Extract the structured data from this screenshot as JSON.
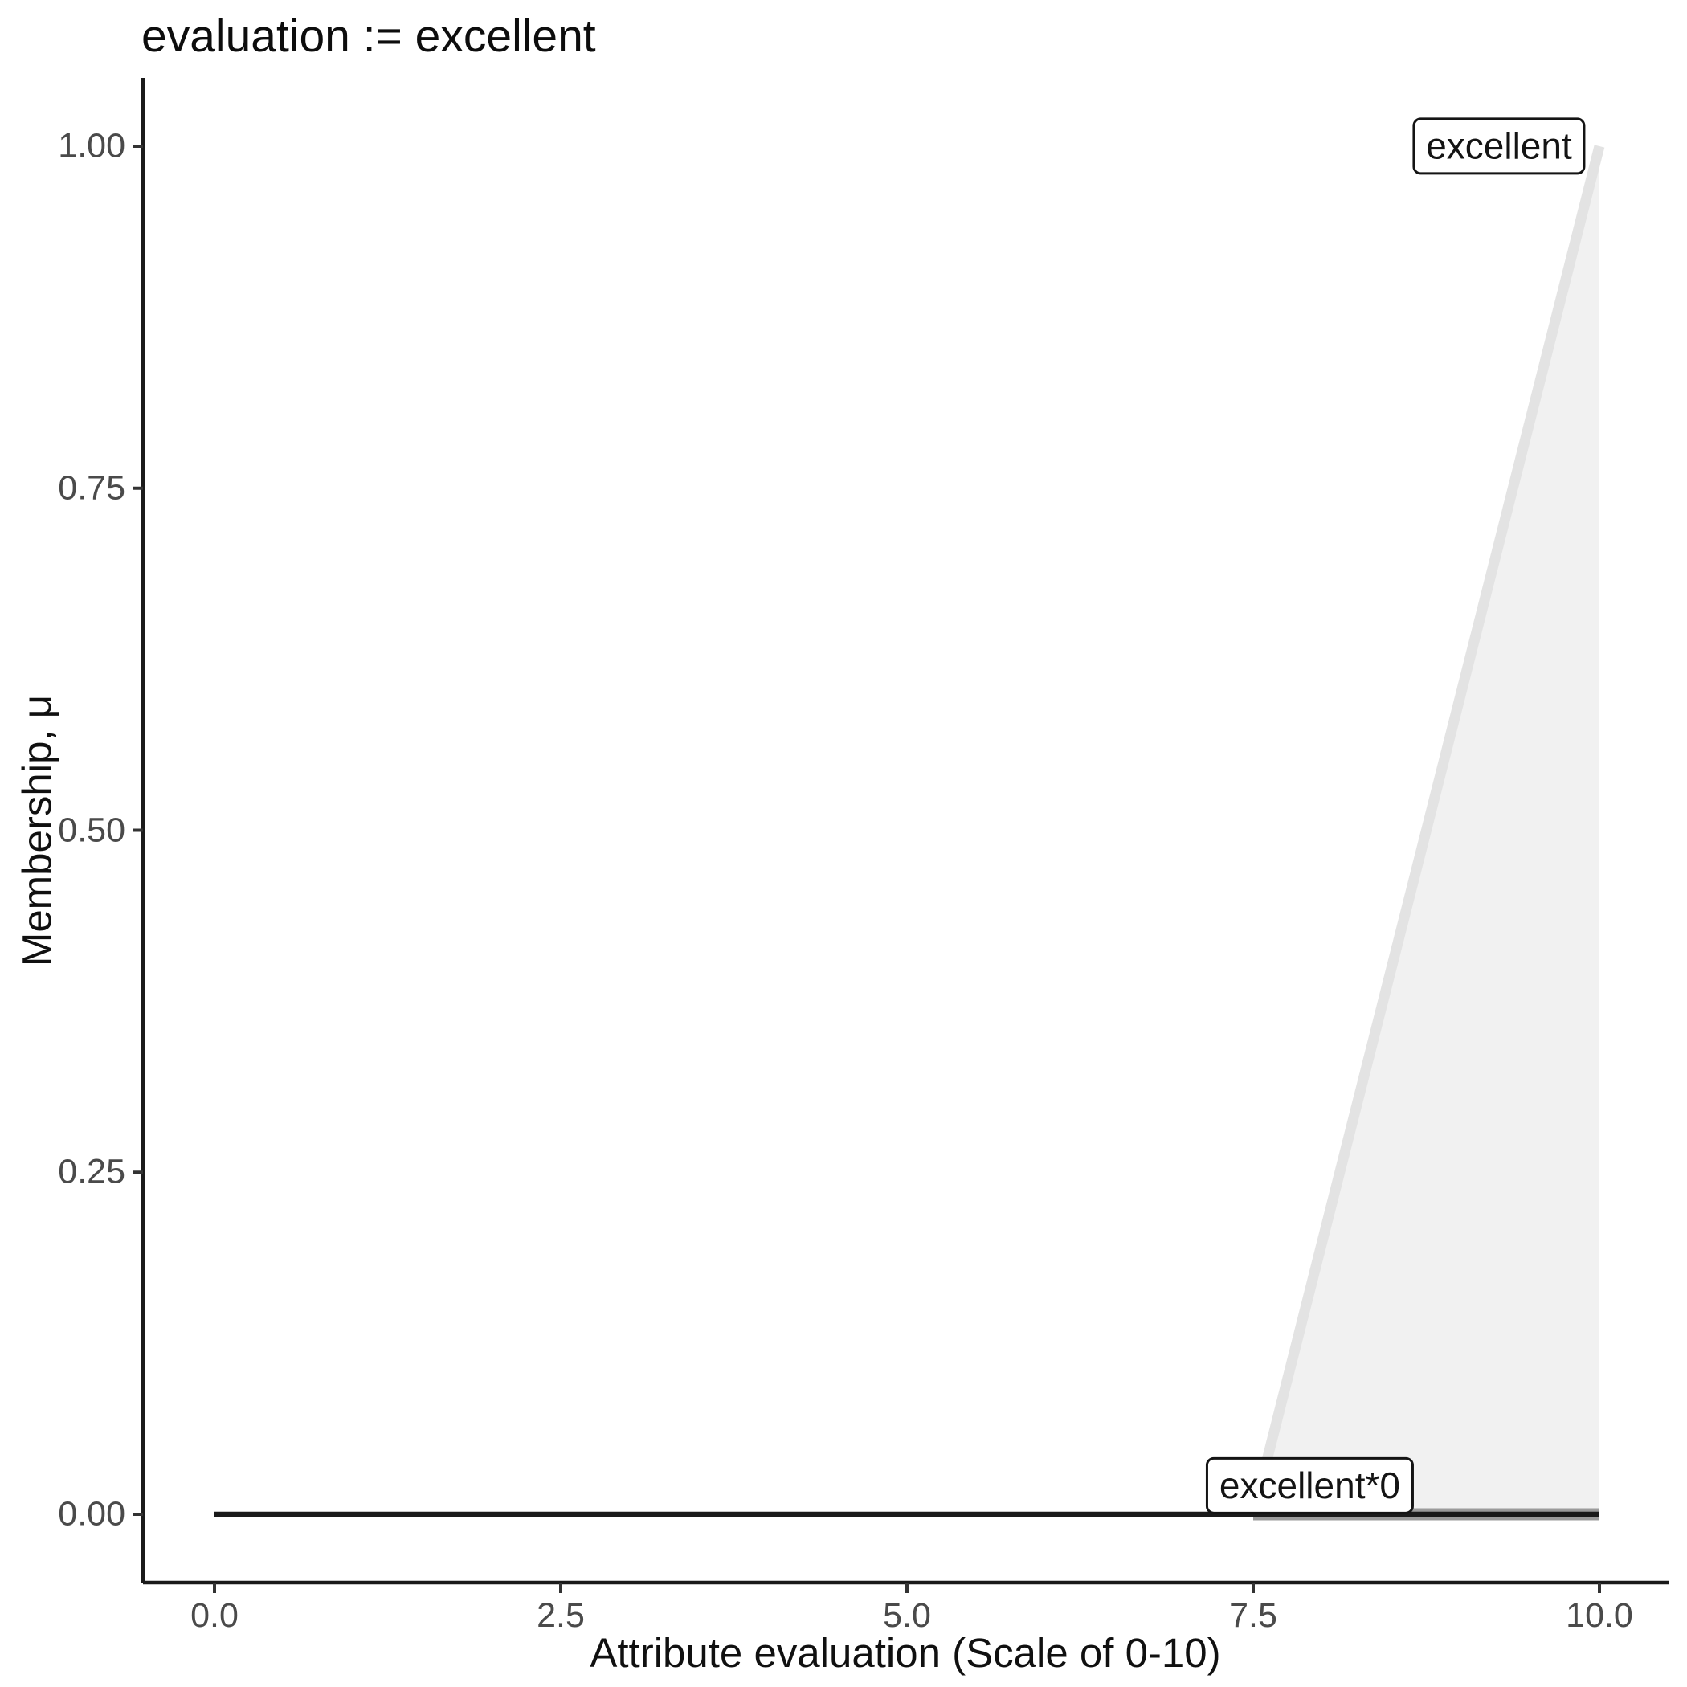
{
  "chart_data": {
    "type": "area",
    "title": "evaluation := excellent",
    "xlabel": "Attribute evaluation (Scale of 0-10)",
    "ylabel": "Membership, μ",
    "xlim": [
      0,
      10
    ],
    "ylim": [
      0,
      1
    ],
    "grid": false,
    "legend_position": "none",
    "x_ticks": {
      "values": [
        0,
        2.5,
        5,
        7.5,
        10
      ],
      "labels": [
        "0.0",
        "2.5",
        "5.0",
        "7.5",
        "10.0"
      ]
    },
    "y_ticks": {
      "values": [
        0,
        0.25,
        0.5,
        0.75,
        1
      ],
      "labels": [
        "0.00",
        "0.25",
        "0.50",
        "0.75",
        "1.00"
      ]
    },
    "series": [
      {
        "name": "excellent",
        "kind": "area",
        "description": "triangular membership function rising from 0 at x=7.5 to 1 at x=10",
        "vertices": [
          [
            7.5,
            0
          ],
          [
            10,
            1
          ],
          [
            10,
            0
          ]
        ],
        "fill": "#f1f1f1",
        "strokes": [
          {
            "from": [
              7.5,
              0
            ],
            "to": [
              10,
              1
            ],
            "color": "#e3e3e3",
            "width": 13
          },
          {
            "from": [
              7.5,
              0
            ],
            "to": [
              10,
              0
            ],
            "color": "#9b9b9b",
            "width": 15
          }
        ]
      },
      {
        "name": "excellent*0",
        "kind": "line",
        "description": "membership scaled by 0, constant zero over the whole domain",
        "vertices": [
          [
            0,
            0
          ],
          [
            10,
            0
          ]
        ],
        "strokes": [
          {
            "from": [
              0,
              0
            ],
            "to": [
              10,
              0
            ],
            "color": "#1a1a1a",
            "width": 6.5
          }
        ]
      }
    ],
    "annotations": [
      {
        "text": "excellent",
        "x": 9.9,
        "y": 1.0,
        "anchor": "right-center"
      },
      {
        "text": "excellent*0",
        "x": 8.66,
        "y": 0.0,
        "anchor": "right-bottom"
      }
    ],
    "colors": {
      "axis": "#1a1a1a",
      "tick": "#333333",
      "tick_label": "#4a4a4a",
      "area_fill": "#f1f1f1",
      "area_edge": "#e3e3e3",
      "area_baseline": "#9b9b9b",
      "result_line": "#1a1a1a"
    }
  }
}
